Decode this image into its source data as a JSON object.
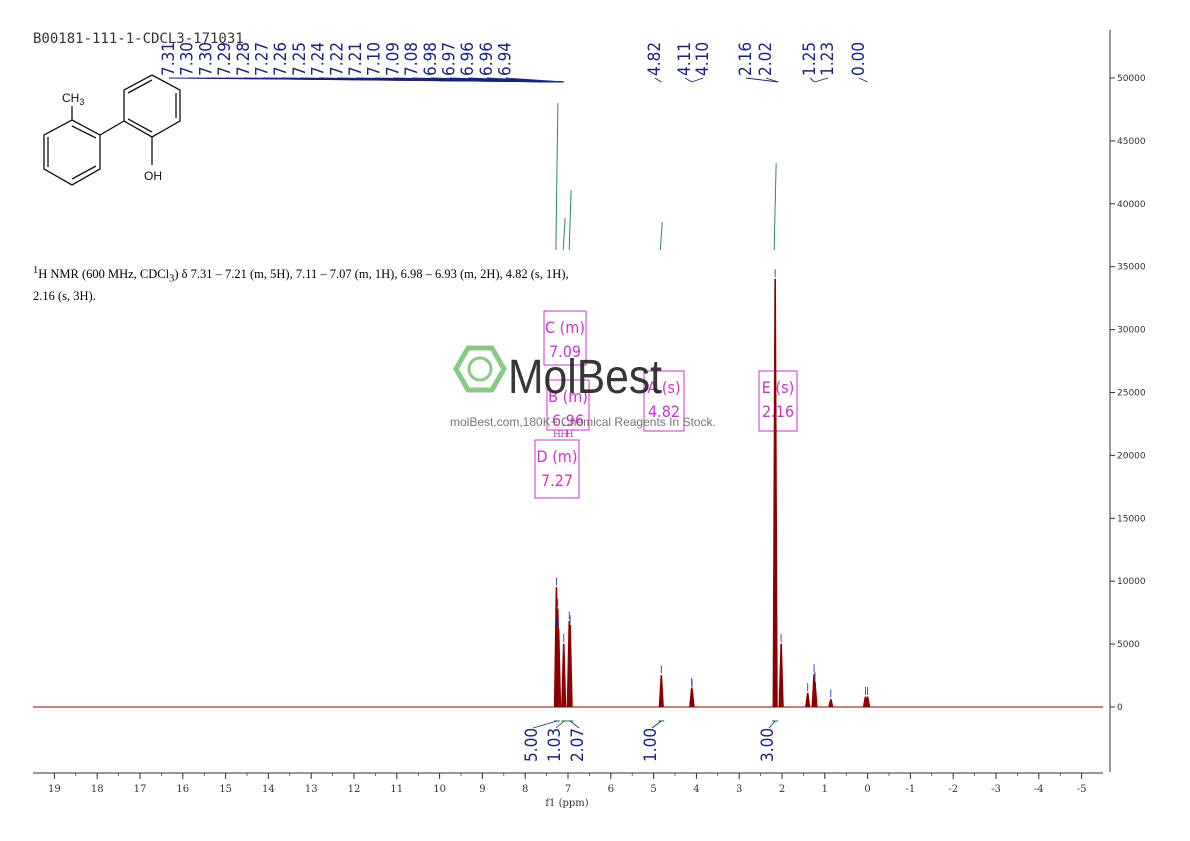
{
  "sample_id": "B00181-111-1-CDCL3-171031",
  "description": {
    "line1": "H NMR (600 MHz, CDCl",
    "line1b": ") δ 7.31 – 7.21 (m, 5H), 7.11 – 7.07 (m, 1H), 6.98 – 6.93 (m, 2H), 4.82 (s, 1H),",
    "line2": "2.16 (s, 3H)."
  },
  "structure": {
    "methyl_label": "CH",
    "methyl_sub": "3",
    "hydroxyl_label": "OH"
  },
  "watermark": {
    "brand": "MolBest",
    "tagline": "molBest.com,180K+ Chemical Reagents In Stock."
  },
  "colors": {
    "spectrum": "#8B0000",
    "peak_labels": "#1a237e",
    "integral": "#2e8b57",
    "multiplet_box": "#cc33cc",
    "watermark": "#7cc576"
  },
  "chart_data": {
    "type": "line",
    "title": "",
    "xlabel": "f1 (ppm)",
    "ylabel": "",
    "xlim": [
      19.5,
      -5.5
    ],
    "ylim": [
      -5000,
      55000
    ],
    "x_reversed": true,
    "x_ticks": [
      "19",
      "18",
      "17",
      "16",
      "15",
      "14",
      "13",
      "12",
      "11",
      "10",
      "9",
      "8",
      "7",
      "6",
      "5",
      "4",
      "3",
      "2",
      "1",
      "0",
      "-1",
      "-2",
      "-3",
      "-4",
      "-5"
    ],
    "y_ticks": [
      "0",
      "5000",
      "10000",
      "15000",
      "20000",
      "25000",
      "30000",
      "35000",
      "40000",
      "45000",
      "50000"
    ],
    "peaks": [
      {
        "ppm": 7.27,
        "height": 9500
      },
      {
        "ppm": 7.24,
        "height": 7800
      },
      {
        "ppm": 7.22,
        "height": 6200
      },
      {
        "ppm": 7.1,
        "height": 5000
      },
      {
        "ppm": 6.97,
        "height": 6800
      },
      {
        "ppm": 6.95,
        "height": 6500
      },
      {
        "ppm": 4.82,
        "height": 2500
      },
      {
        "ppm": 4.11,
        "height": 1500
      },
      {
        "ppm": 4.1,
        "height": 1400
      },
      {
        "ppm": 2.16,
        "height": 34000
      },
      {
        "ppm": 2.02,
        "height": 5000
      },
      {
        "ppm": 1.4,
        "height": 1100
      },
      {
        "ppm": 1.25,
        "height": 2600
      },
      {
        "ppm": 1.23,
        "height": 2000
      },
      {
        "ppm": 0.86,
        "height": 600
      },
      {
        "ppm": 0.05,
        "height": 800
      },
      {
        "ppm": 0.0,
        "height": 800
      }
    ],
    "peak_labels": [
      "7.31",
      "7.30",
      "7.30",
      "7.29",
      "7.28",
      "7.27",
      "7.26",
      "7.25",
      "7.24",
      "7.22",
      "7.21",
      "7.10",
      "7.09",
      "7.08",
      "6.98",
      "6.97",
      "6.96",
      "6.96",
      "6.94",
      "4.82",
      "4.11",
      "4.10",
      "2.16",
      "2.02",
      "1.25",
      "1.23",
      "0.00"
    ],
    "integrals": [
      {
        "value": "5.00",
        "ppm": 7.26
      },
      {
        "value": "1.03",
        "ppm": 7.09
      },
      {
        "value": "2.07",
        "ppm": 6.95
      },
      {
        "value": "1.00",
        "ppm": 4.82
      },
      {
        "value": "3.00",
        "ppm": 2.16
      }
    ],
    "multiplets": [
      {
        "letter": "C (m)",
        "value": "7.09"
      },
      {
        "letter": "B (m)",
        "value": "6.96"
      },
      {
        "letter": "A (s)",
        "value": "4.82"
      },
      {
        "letter": "E (s)",
        "value": "2.16"
      },
      {
        "letter": "D (m)",
        "value": "7.27"
      }
    ]
  }
}
